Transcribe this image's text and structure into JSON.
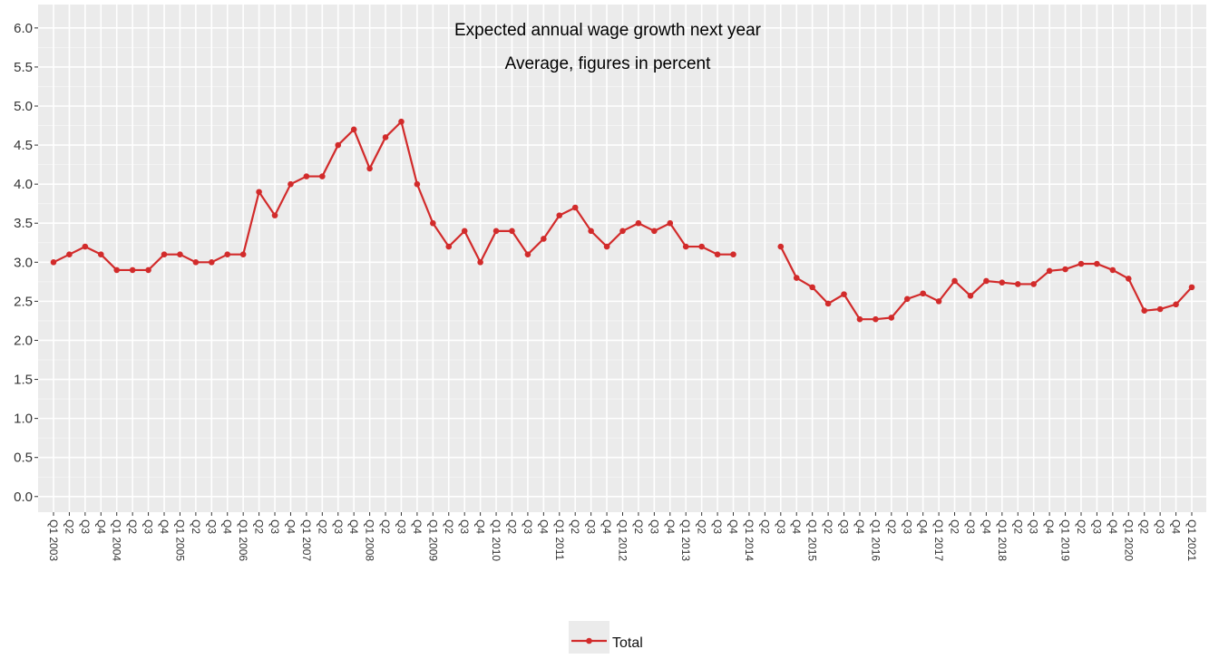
{
  "chart_data": {
    "type": "line",
    "title": "Expected annual wage growth next year",
    "subtitle": "Average, figures in percent",
    "categories": [
      "Q1 2003",
      "Q2",
      "Q3",
      "Q4",
      "Q1 2004",
      "Q2",
      "Q3",
      "Q4",
      "Q1 2005",
      "Q2",
      "Q3",
      "Q4",
      "Q1 2006",
      "Q2",
      "Q3",
      "Q4",
      "Q1 2007",
      "Q2",
      "Q3",
      "Q4",
      "Q1 2008",
      "Q2",
      "Q3",
      "Q4",
      "Q1 2009",
      "Q2",
      "Q3",
      "Q4",
      "Q1 2010",
      "Q2",
      "Q3",
      "Q4",
      "Q1 2011",
      "Q2",
      "Q3",
      "Q4",
      "Q1 2012",
      "Q2",
      "Q3",
      "Q4",
      "Q1 2013",
      "Q2",
      "Q3",
      "Q4",
      "Q1 2014",
      "Q2",
      "Q3",
      "Q4",
      "Q1 2015",
      "Q2",
      "Q3",
      "Q4",
      "Q1 2016",
      "Q2",
      "Q3",
      "Q4",
      "Q1 2017",
      "Q2",
      "Q3",
      "Q4",
      "Q1 2018",
      "Q2",
      "Q3",
      "Q4",
      "Q1 2019",
      "Q2",
      "Q3",
      "Q4",
      "Q1 2020",
      "Q2",
      "Q3",
      "Q4",
      "Q1 2021"
    ],
    "series": [
      {
        "name": "Total",
        "color": "#d22b2b",
        "values": [
          3.0,
          3.1,
          3.2,
          3.1,
          2.9,
          2.9,
          2.9,
          3.1,
          3.1,
          3.0,
          3.0,
          3.1,
          3.1,
          3.9,
          3.6,
          4.0,
          4.1,
          4.1,
          4.5,
          4.7,
          4.2,
          4.6,
          4.8,
          4.0,
          3.5,
          3.2,
          3.4,
          3.0,
          3.4,
          3.4,
          3.1,
          3.3,
          3.6,
          3.7,
          3.4,
          3.2,
          3.4,
          3.5,
          3.4,
          3.5,
          3.2,
          3.2,
          3.1,
          3.1,
          null,
          null,
          3.2,
          2.8,
          2.68,
          2.47,
          2.59,
          2.27,
          2.27,
          2.29,
          2.53,
          2.6,
          2.5,
          2.76,
          2.57,
          2.76,
          2.74,
          2.72,
          2.72,
          2.89,
          2.91,
          2.98,
          2.98,
          2.9,
          2.79,
          2.38,
          2.4,
          2.46,
          2.68
        ]
      }
    ],
    "ylim": [
      -0.2,
      6.3
    ],
    "yticks": [
      {
        "value": 0,
        "label": "0.0"
      },
      0.5,
      {
        "value": 1,
        "label": "1.0"
      },
      1.5,
      {
        "value": 2,
        "label": "2.0"
      },
      2.5,
      {
        "value": 3,
        "label": "3.0"
      },
      3.5,
      {
        "value": 4,
        "label": "4.0"
      },
      4.5,
      {
        "value": 5,
        "label": "5.0"
      },
      5.5,
      {
        "value": 6,
        "label": "6.0"
      }
    ],
    "grid": true,
    "legend_position": "bottom"
  }
}
